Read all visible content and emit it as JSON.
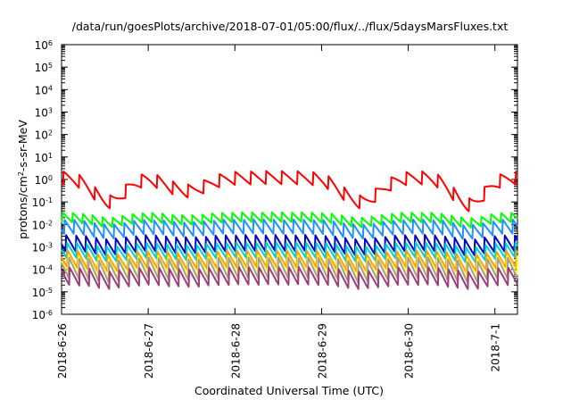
{
  "chart_data": {
    "type": "line",
    "title": "/data/run/goesPlots/archive/2018-07-01/05:00/flux/../flux/5daysMarsFluxes.txt",
    "xlabel": "Coordinated Universal Time (UTC)",
    "ylabel_main": "protons/cm",
    "ylabel_sup": "2",
    "ylabel_tail": "-s-sr-MeV",
    "y_scale": "log",
    "ylim_exponents": [
      -6,
      6
    ],
    "y_tick_base": "10",
    "y_tick_exponents": [
      "-6",
      "-5",
      "-4",
      "-3",
      "-2",
      "-1",
      "0",
      "1",
      "2",
      "3",
      "4",
      "5",
      "6"
    ],
    "x_tick_labels": [
      "2018-6-26",
      "2018-6-27",
      "2018-6-28",
      "2018-6-29",
      "2018-6-30",
      "2018-7-1"
    ],
    "x_range_days": [
      0,
      5.26
    ],
    "x_tick_days": [
      0,
      1,
      2,
      3,
      4,
      5
    ],
    "grid": false,
    "series": [
      {
        "color": "#ff0000",
        "peak": 2.4,
        "ratio": 4.0,
        "period": 0.18,
        "phase": 0.02,
        "dip_depth": 1.2
      },
      {
        "color": "#00ff00",
        "peak": 0.035,
        "ratio": 2.8,
        "period": 0.115,
        "phase": 0.01,
        "dip_depth": 0.25
      },
      {
        "color": "#1e8fff",
        "peak": 0.017,
        "ratio": 4.5,
        "period": 0.115,
        "phase": 0.03,
        "dip_depth": 0.25
      },
      {
        "color": "#0000c8",
        "peak": 0.0035,
        "ratio": 5.5,
        "period": 0.115,
        "phase": 0.05,
        "dip_depth": 0.2
      },
      {
        "color": "#00d2d2",
        "peak": 0.0016,
        "ratio": 5.0,
        "period": 0.115,
        "phase": 0.06,
        "dip_depth": 0.2
      },
      {
        "color": "#ffa000",
        "peak": 0.0007,
        "ratio": 6.0,
        "period": 0.115,
        "phase": 0.07,
        "dip_depth": 0.2
      },
      {
        "color": "#ffff32",
        "peak": 0.00045,
        "ratio": 8.0,
        "period": 0.115,
        "phase": 0.08,
        "dip_depth": 0.2
      },
      {
        "color": "#a0a0a0",
        "peak": 0.00035,
        "ratio": 9.0,
        "period": 0.115,
        "phase": 0.085,
        "dip_depth": 0.2
      },
      {
        "color": "#a03c78",
        "peak": 0.00013,
        "ratio": 6.5,
        "period": 0.115,
        "phase": 0.09,
        "dip_depth": 0.2
      }
    ]
  }
}
